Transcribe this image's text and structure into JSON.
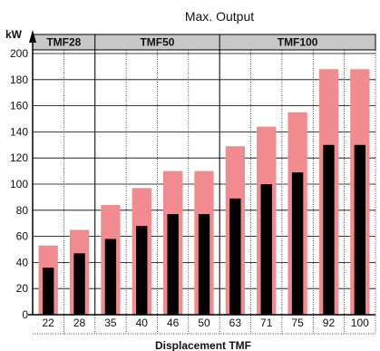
{
  "chart_data": {
    "type": "bar",
    "title": "Max. Output",
    "ylabel": "kW",
    "xlabel": "Displacement TMF",
    "ylim": [
      0,
      200
    ],
    "yticks": [
      0,
      20,
      40,
      60,
      80,
      100,
      120,
      140,
      160,
      180,
      200
    ],
    "grid": true,
    "categories": [
      "22",
      "28",
      "35",
      "40",
      "46",
      "50",
      "63",
      "71",
      "75",
      "92",
      "100"
    ],
    "groups": [
      {
        "label": "TMF28",
        "categories": [
          "22",
          "28"
        ]
      },
      {
        "label": "TMF50",
        "categories": [
          "35",
          "40",
          "46",
          "50"
        ]
      },
      {
        "label": "TMF100",
        "categories": [
          "63",
          "71",
          "75",
          "92",
          "100"
        ]
      }
    ],
    "series": [
      {
        "color": "#f28b8f",
        "values": [
          53,
          65,
          84,
          97,
          110,
          110,
          129,
          144,
          155,
          188,
          188
        ]
      },
      {
        "color": "#000000",
        "values": [
          36,
          47,
          58,
          68,
          77,
          77,
          89,
          100,
          109,
          130,
          130
        ]
      }
    ]
  }
}
